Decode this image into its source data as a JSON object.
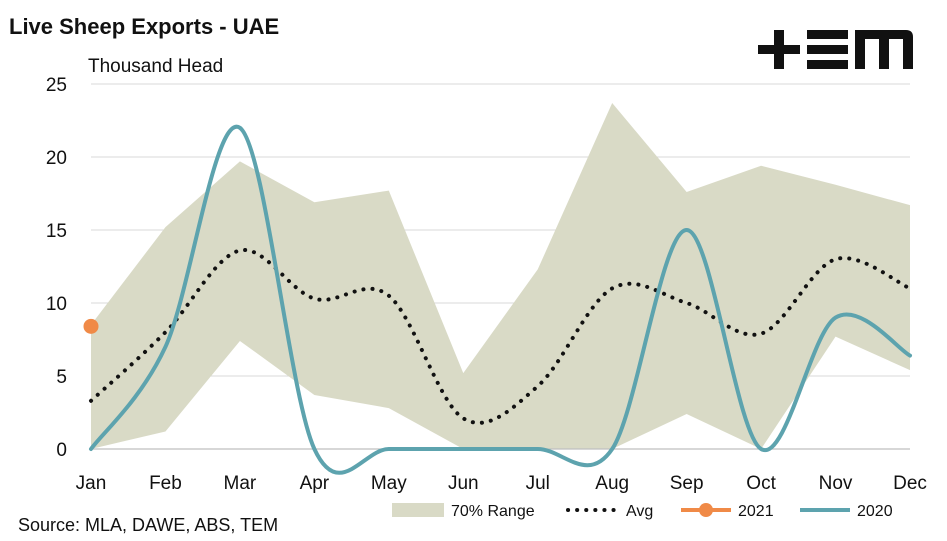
{
  "header": {
    "title": "Live Sheep Exports - UAE",
    "unit": "Thousand Head",
    "source": "Source: MLA, DAWE, ABS, TEM",
    "logo_text": "TEM"
  },
  "chart_data": {
    "type": "line",
    "title": "Live Sheep Exports - UAE",
    "ylabel": "Thousand Head",
    "xlabel": "",
    "categories": [
      "Jan",
      "Feb",
      "Mar",
      "Apr",
      "May",
      "Jun",
      "Jul",
      "Aug",
      "Sep",
      "Oct",
      "Nov",
      "Dec"
    ],
    "ylim": [
      0,
      25
    ],
    "yticks": [
      0,
      5,
      10,
      15,
      20,
      25
    ],
    "grid": true,
    "legend_position": "bottom-right",
    "range": {
      "name": "70% Range",
      "color": "#d9dac6",
      "upper": [
        8.5,
        15.2,
        19.7,
        16.9,
        17.7,
        5.2,
        12.3,
        23.7,
        17.6,
        19.4,
        18.1,
        16.7
      ],
      "lower": [
        0.0,
        1.2,
        7.4,
        3.7,
        2.8,
        0.0,
        0.0,
        0.0,
        2.4,
        0.0,
        7.7,
        5.4
      ]
    },
    "series": [
      {
        "name": "Avg",
        "color": "#111111",
        "style": "dotted",
        "values": [
          3.3,
          8.0,
          13.6,
          10.3,
          10.5,
          2.1,
          4.3,
          11.0,
          10.0,
          7.9,
          13.0,
          11.0
        ]
      },
      {
        "name": "2021",
        "color": "#f08a47",
        "style": "marker",
        "values": [
          8.4,
          null,
          null,
          null,
          null,
          null,
          null,
          null,
          null,
          null,
          null,
          null
        ]
      },
      {
        "name": "2020",
        "color": "#5da3ae",
        "style": "solid",
        "values": [
          0.0,
          7.0,
          22.0,
          0.0,
          0.0,
          0.0,
          0.0,
          0.0,
          15.0,
          0.0,
          9.0,
          6.4
        ]
      }
    ]
  }
}
